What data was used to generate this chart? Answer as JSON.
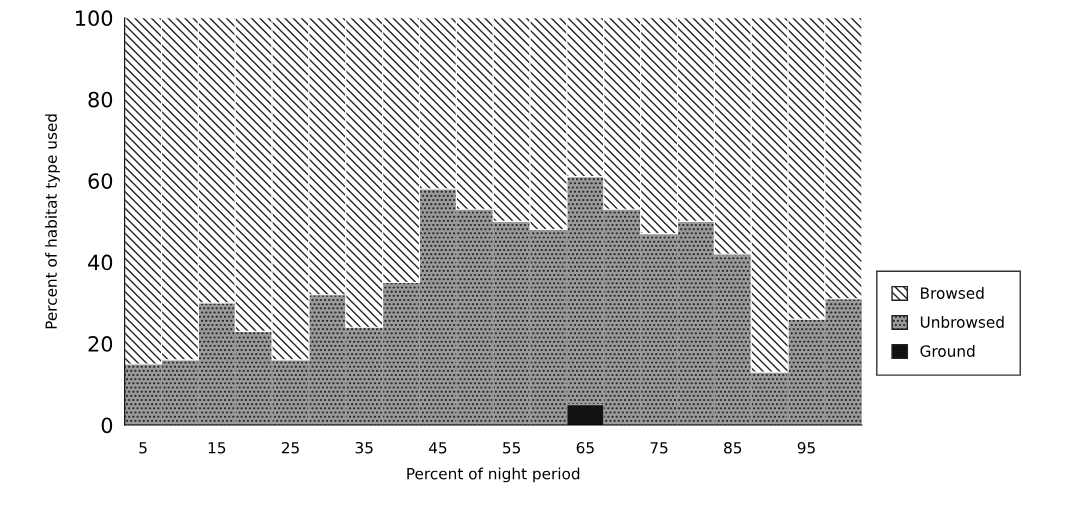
{
  "chart_data": {
    "type": "bar",
    "stacked": true,
    "xlabel": "Percent of night period",
    "ylabel": "Percent of habitat type used",
    "categories": [
      "5",
      null,
      "15",
      null,
      "25",
      null,
      "35",
      null,
      "45",
      null,
      "55",
      null,
      "65",
      null,
      "75",
      null,
      "85",
      null,
      "95",
      null
    ],
    "series": [
      {
        "name": "Ground",
        "color": "#111111",
        "values": [
          0,
          0,
          0,
          0,
          0,
          0,
          0,
          0,
          0,
          0,
          0,
          0,
          5,
          0,
          0,
          0,
          0,
          0,
          0,
          0
        ]
      },
      {
        "name": "Unbrowsed",
        "color": "#9a9a9a",
        "values": [
          15,
          16,
          30,
          23,
          16,
          32,
          24,
          35,
          58,
          53,
          50,
          48,
          56,
          53,
          47,
          50,
          42,
          13,
          26,
          31
        ]
      },
      {
        "name": "Browsed",
        "color": "#ffffff",
        "values": [
          85,
          84,
          70,
          77,
          84,
          68,
          76,
          65,
          42,
          47,
          50,
          52,
          39,
          47,
          53,
          50,
          58,
          87,
          74,
          69
        ]
      }
    ],
    "ylim": [
      0,
      100
    ],
    "yticks": [
      0,
      20,
      40,
      60,
      80,
      100
    ],
    "grid": false,
    "legend": "right"
  }
}
